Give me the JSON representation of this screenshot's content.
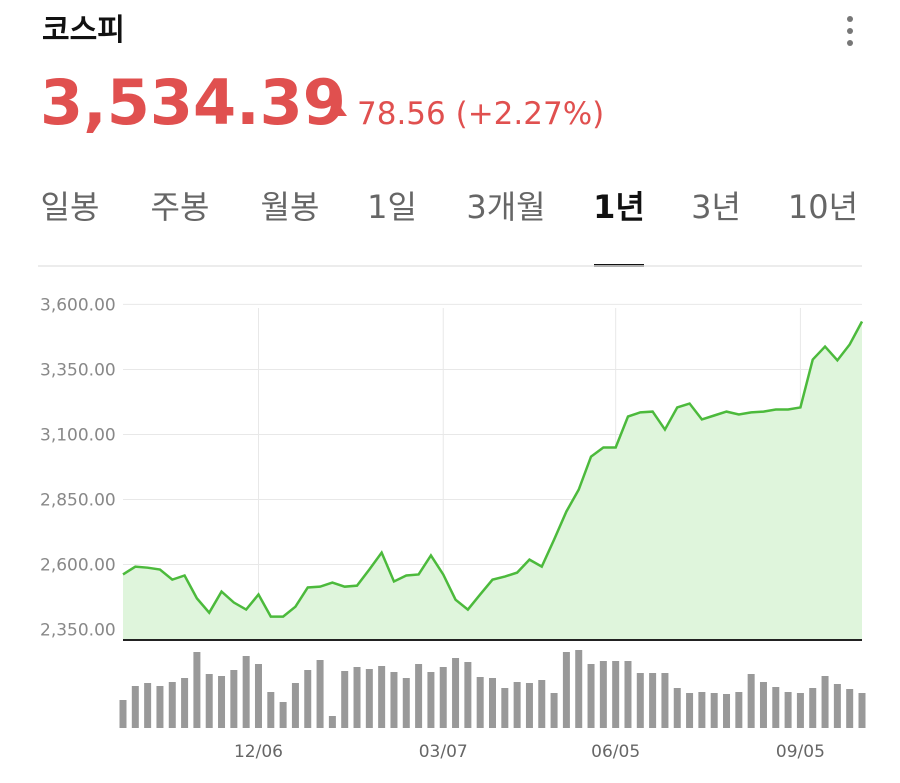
{
  "header": {
    "title": "코스피",
    "price": "3,534.39",
    "change": "78.56 (+2.27%)"
  },
  "tabs": {
    "items": [
      "일봉",
      "주봉",
      "월봉",
      "1일",
      "3개월",
      "1년",
      "3년",
      "10년"
    ],
    "selected": 5
  },
  "chart_data": {
    "type": "line",
    "categories": [
      null,
      null,
      null,
      null,
      null,
      null,
      null,
      null,
      null,
      null,
      null,
      "12/06",
      null,
      null,
      null,
      null,
      null,
      null,
      null,
      null,
      null,
      null,
      null,
      null,
      null,
      null,
      "03/07",
      null,
      null,
      null,
      null,
      null,
      null,
      null,
      null,
      null,
      null,
      null,
      null,
      null,
      "06/05",
      null,
      null,
      null,
      null,
      null,
      null,
      null,
      null,
      null,
      null,
      null,
      null,
      null,
      null,
      "09/05",
      null,
      null,
      null,
      null,
      null
    ],
    "series": [
      {
        "color": "#4cba3c",
        "fill": "#dff5dc",
        "values": [
          2562,
          2592,
          2588,
          2581,
          2542,
          2558,
          2470,
          2415,
          2496,
          2454,
          2427,
          2485,
          2400,
          2400,
          2438,
          2512,
          2515,
          2531,
          2515,
          2519,
          2581,
          2646,
          2535,
          2558,
          2562,
          2635,
          2562,
          2465,
          2427,
          2485,
          2542,
          2554,
          2569,
          2619,
          2592,
          2696,
          2804,
          2888,
          3015,
          3050,
          3050,
          3169,
          3185,
          3188,
          3119,
          3204,
          3219,
          3158,
          3173,
          3188,
          3177,
          3185,
          3188,
          3196,
          3196,
          3204,
          3388,
          3438,
          3385,
          3446,
          3534.39
        ]
      }
    ],
    "volume": {
      "color": "#999999",
      "values": [
        28,
        42,
        45,
        42,
        46,
        50,
        76,
        54,
        52,
        58,
        72,
        64,
        36,
        26,
        45,
        58,
        68,
        12,
        57,
        61,
        59,
        62,
        56,
        50,
        64,
        56,
        61,
        70,
        66,
        51,
        50,
        40,
        46,
        45,
        48,
        35,
        76,
        78,
        64,
        67,
        67,
        67,
        55,
        55,
        55,
        40,
        35,
        36,
        35,
        34,
        36,
        54,
        46,
        41,
        36,
        35,
        40,
        52,
        44,
        39,
        35
      ]
    },
    "ylim": [
      2310,
      3740
    ],
    "yticks": [
      {
        "value": 2350,
        "label": "2,350.00"
      },
      {
        "value": 2600,
        "label": "2,600.00"
      },
      {
        "value": 2850,
        "label": "2,850.00"
      },
      {
        "value": 3100,
        "label": "3,100.00"
      },
      {
        "value": 3350,
        "label": "3,350.00"
      },
      {
        "value": 3600,
        "label": "3,600.00"
      }
    ],
    "grid": true
  }
}
